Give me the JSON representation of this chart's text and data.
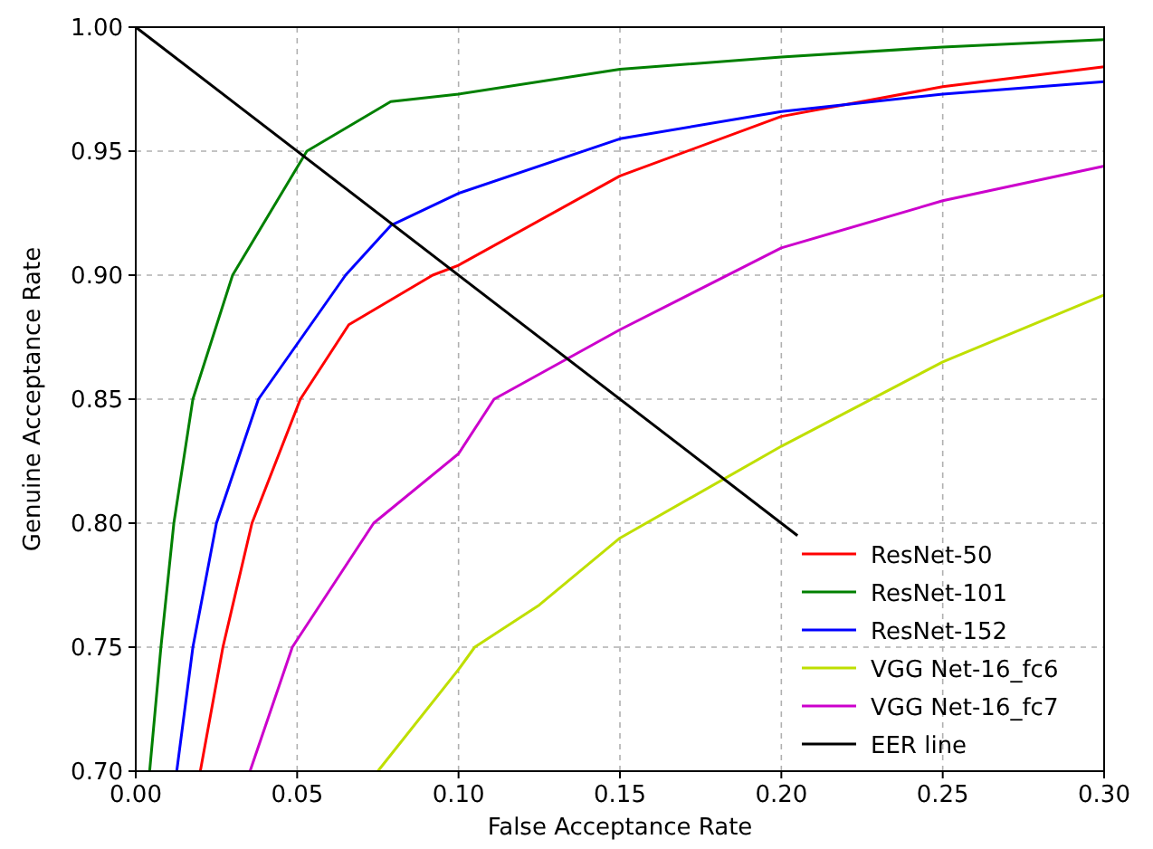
{
  "chart_data": {
    "type": "line",
    "xlabel": "False Acceptance Rate",
    "ylabel": "Genuine Acceptance Rate",
    "xlim": [
      0,
      0.3
    ],
    "ylim": [
      0.7,
      1.0
    ],
    "xticks": [
      {
        "value": 0,
        "label": "0.00"
      },
      {
        "value": 0.05,
        "label": "0.05"
      },
      {
        "value": 0.1,
        "label": "0.10"
      },
      {
        "value": 0.15,
        "label": "0.15"
      },
      {
        "value": 0.2,
        "label": "0.20"
      },
      {
        "value": 0.25,
        "label": "0.25"
      },
      {
        "value": 0.3,
        "label": "0.30"
      }
    ],
    "yticks": [
      {
        "value": 0.7,
        "label": "0.70"
      },
      {
        "value": 0.75,
        "label": "0.75"
      },
      {
        "value": 0.8,
        "label": "0.80"
      },
      {
        "value": 0.85,
        "label": "0.85"
      },
      {
        "value": 0.9,
        "label": "0.90"
      },
      {
        "value": 0.95,
        "label": "0.95"
      },
      {
        "value": 1.0,
        "label": "1.00"
      }
    ],
    "grid": true,
    "legend": "bottom right",
    "line_style": "solid",
    "series": [
      {
        "name": "ResNet-50",
        "color": "#ff0000",
        "x": [
          0.02,
          0.027,
          0.036,
          0.051,
          0.066,
          0.092,
          0.1,
          0.15,
          0.2,
          0.25,
          0.3
        ],
        "values": [
          0.7,
          0.75,
          0.8,
          0.85,
          0.88,
          0.9,
          0.904,
          0.94,
          0.964,
          0.976,
          0.984
        ]
      },
      {
        "name": "ResNet-101",
        "color": "#008000",
        "x": [
          0.0043,
          0.0078,
          0.0118,
          0.0177,
          0.03,
          0.053,
          0.079,
          0.1,
          0.15,
          0.2,
          0.25,
          0.3
        ],
        "values": [
          0.7,
          0.75,
          0.8,
          0.85,
          0.9,
          0.95,
          0.97,
          0.973,
          0.983,
          0.988,
          0.992,
          0.995
        ]
      },
      {
        "name": "ResNet-152",
        "color": "#0000ff",
        "x": [
          0.0127,
          0.0177,
          0.025,
          0.038,
          0.065,
          0.079,
          0.1,
          0.15,
          0.2,
          0.25,
          0.3
        ],
        "values": [
          0.7,
          0.75,
          0.8,
          0.85,
          0.9,
          0.92,
          0.933,
          0.955,
          0.966,
          0.973,
          0.978
        ]
      },
      {
        "name": "VGG Net-16_fc6",
        "color": "#bfdf00",
        "x": [
          0.075,
          0.1,
          0.105,
          0.125,
          0.15,
          0.2,
          0.25,
          0.3
        ],
        "values": [
          0.7,
          0.741,
          0.75,
          0.767,
          0.794,
          0.831,
          0.865,
          0.892
        ]
      },
      {
        "name": "VGG Net-16_fc7",
        "color": "#cc00cc",
        "x": [
          0.0354,
          0.0485,
          0.0737,
          0.1,
          0.111,
          0.15,
          0.2,
          0.25,
          0.3
        ],
        "values": [
          0.7,
          0.75,
          0.8,
          0.828,
          0.85,
          0.878,
          0.911,
          0.93,
          0.944
        ]
      },
      {
        "name": "EER line",
        "color": "#000000",
        "x": [
          0,
          0.205
        ],
        "values": [
          1.0,
          0.795
        ]
      }
    ]
  }
}
